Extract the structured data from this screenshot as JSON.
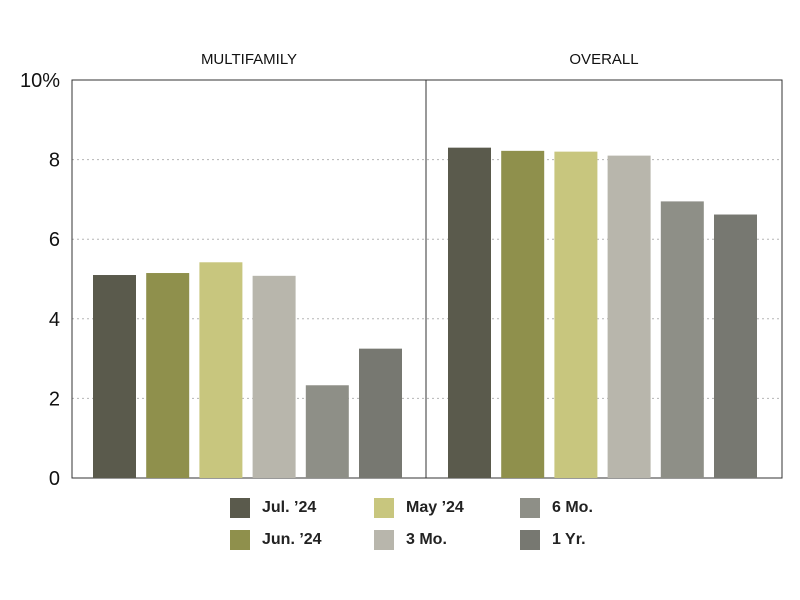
{
  "chart_data": {
    "type": "bar",
    "title": "",
    "xlabel": "",
    "ylabel": "",
    "ylim": [
      0,
      10
    ],
    "yticks": [
      "0",
      "2",
      "4",
      "6",
      "8",
      "10%"
    ],
    "grid": "horizontal dotted",
    "legend_position": "bottom",
    "panels": [
      "MULTIFAMILY",
      "OVERALL"
    ],
    "series": [
      {
        "name": "Jul. ’24",
        "color": "#5a5a4c",
        "values": [
          5.1,
          8.3
        ]
      },
      {
        "name": "Jun. ’24",
        "color": "#8f904c",
        "values": [
          5.15,
          8.22
        ]
      },
      {
        "name": "May ’24",
        "color": "#c8c67e",
        "values": [
          5.42,
          8.2
        ]
      },
      {
        "name": "3 Mo.",
        "color": "#b8b6ac",
        "values": [
          5.08,
          8.1
        ]
      },
      {
        "name": "6 Mo.",
        "color": "#8e8f87",
        "values": [
          2.33,
          6.95
        ]
      },
      {
        "name": "1 Yr.",
        "color": "#777871",
        "values": [
          3.25,
          6.62
        ]
      }
    ]
  }
}
